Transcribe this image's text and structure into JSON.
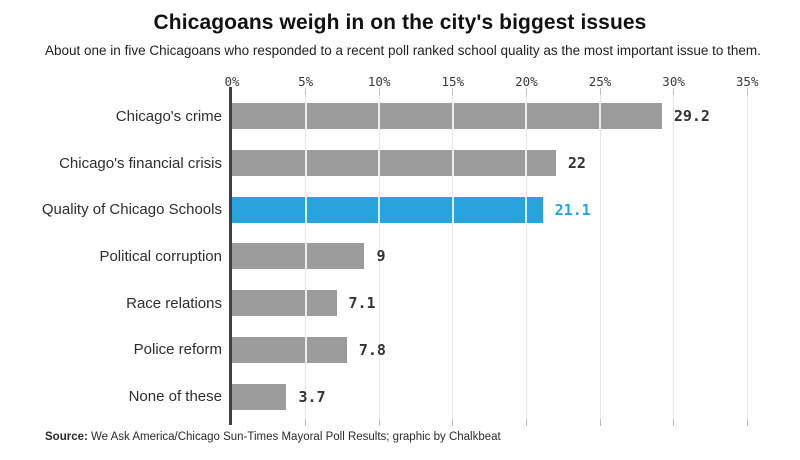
{
  "header": {
    "title": "Chicagoans weigh in on the city's biggest issues",
    "subtitle": "About one in five Chicagoans who responded to a recent poll ranked school quality as the most important issue to them."
  },
  "source": {
    "label": "Source:",
    "text": " We Ask America/Chicago Sun-Times Mayoral Poll Results; graphic by Chalkbeat"
  },
  "colors": {
    "bar_default": "#9b9b9b",
    "bar_highlight": "#29a3dc",
    "value_default": "#333333",
    "value_highlight": "#29a3dc",
    "axis": "#3f3f3f",
    "gridline": "#e8e8e8"
  },
  "chart_data": {
    "type": "bar",
    "orientation": "horizontal",
    "title": "Chicagoans weigh in on the city's biggest issues",
    "subtitle": "About one in five Chicagoans who responded to a recent poll ranked school quality as the most important issue to them.",
    "categories": [
      "Chicago's crime",
      "Chicago's financial crisis",
      "Quality of Chicago Schools",
      "Political corruption",
      "Race relations",
      "Police reform",
      "None of these"
    ],
    "values": [
      29.2,
      22,
      21.1,
      9,
      7.1,
      7.8,
      3.7
    ],
    "value_labels": [
      "29.2",
      "22",
      "21.1",
      "9",
      "7.1",
      "7.8",
      "3.7"
    ],
    "highlight_index": 2,
    "x_tick_labels": [
      "0%",
      "5%",
      "10%",
      "15%",
      "20%",
      "25%",
      "30%",
      "35%"
    ],
    "x_tick_values": [
      0,
      5,
      10,
      15,
      20,
      25,
      30,
      35
    ],
    "xlim": [
      0,
      35
    ],
    "xlabel": "",
    "ylabel": "",
    "grid": true,
    "legend": false,
    "unit": "%"
  }
}
